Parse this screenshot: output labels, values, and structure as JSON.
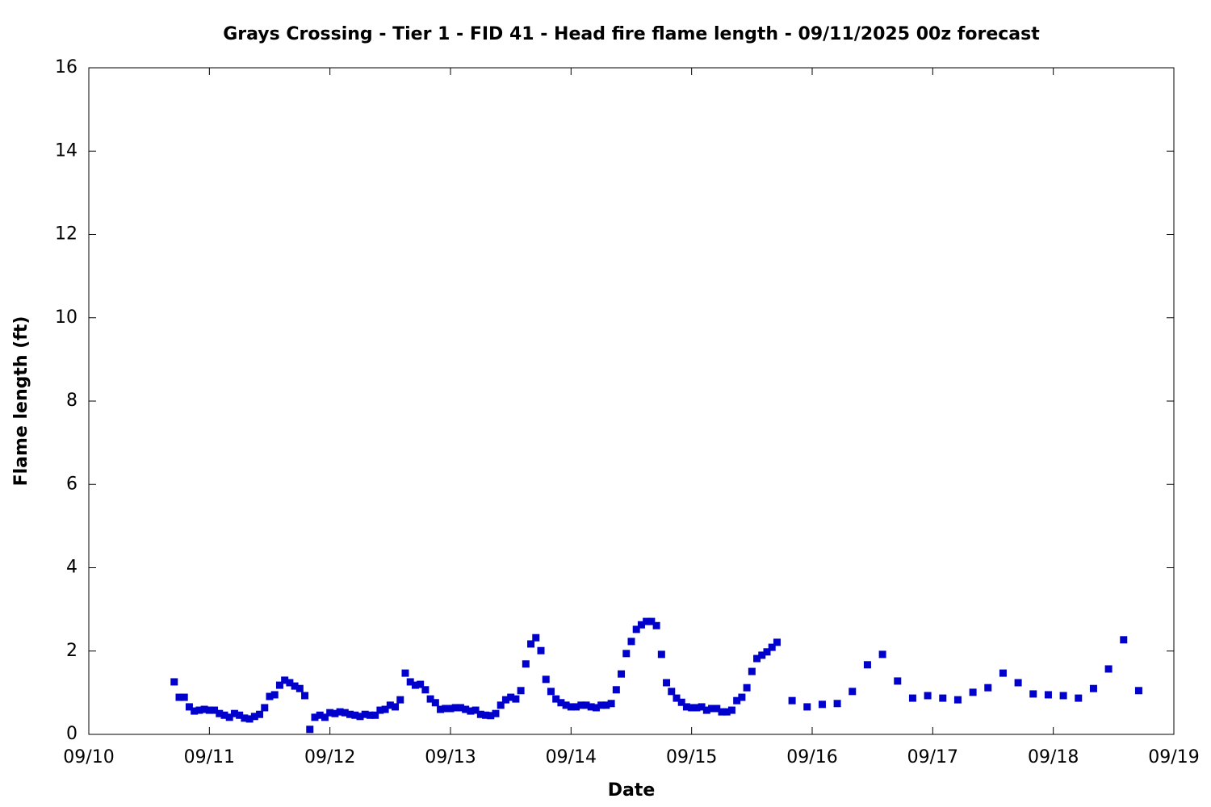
{
  "chart_data": {
    "type": "scatter",
    "title": "Grays Crossing - Tier 1 - FID 41 - Head fire flame length - 09/11/2025 00z forecast",
    "x_label": "Date",
    "y_label": "Flame length (ft)",
    "series": [
      {
        "color": "#0000cc",
        "x": [
          17,
          18,
          19,
          20,
          21,
          22,
          23,
          24,
          25,
          26,
          27,
          28,
          29,
          30,
          31,
          32,
          33,
          34,
          35,
          36,
          37,
          38,
          39,
          40,
          41,
          42,
          43,
          44,
          45,
          46,
          47,
          48,
          49,
          50,
          51,
          52,
          53,
          54,
          55,
          56,
          57,
          58,
          59,
          60,
          61,
          62,
          63,
          64,
          65,
          66,
          67,
          68,
          69,
          70,
          71,
          72,
          73,
          74,
          75,
          76,
          77,
          78,
          79,
          80,
          81,
          82,
          83,
          84,
          85,
          86,
          87,
          88,
          89,
          90,
          91,
          92,
          93,
          94,
          95,
          96,
          97,
          98,
          99,
          100,
          101,
          102,
          103,
          104,
          105,
          106,
          107,
          108,
          109,
          110,
          111,
          112,
          113,
          114,
          115,
          116,
          117,
          118,
          119,
          120,
          121,
          122,
          123,
          124,
          125,
          126,
          127,
          128,
          129,
          130,
          131,
          132,
          133,
          134,
          135,
          136,
          137,
          140,
          143,
          146,
          149,
          152,
          155,
          158,
          161,
          164,
          167,
          170,
          173,
          176,
          179,
          182,
          185,
          188,
          191,
          194,
          197,
          200,
          203,
          206,
          209
        ],
        "values": [
          1.26,
          0.89,
          0.89,
          0.66,
          0.56,
          0.58,
          0.6,
          0.58,
          0.58,
          0.5,
          0.46,
          0.41,
          0.5,
          0.46,
          0.39,
          0.37,
          0.43,
          0.48,
          0.64,
          0.91,
          0.95,
          1.18,
          1.3,
          1.24,
          1.16,
          1.1,
          0.93,
          0.12,
          0.41,
          0.46,
          0.41,
          0.52,
          0.5,
          0.54,
          0.52,
          0.48,
          0.46,
          0.43,
          0.48,
          0.46,
          0.46,
          0.58,
          0.6,
          0.7,
          0.66,
          0.83,
          1.47,
          1.26,
          1.18,
          1.2,
          1.07,
          0.85,
          0.76,
          0.6,
          0.62,
          0.62,
          0.64,
          0.64,
          0.6,
          0.56,
          0.58,
          0.48,
          0.46,
          0.45,
          0.5,
          0.7,
          0.83,
          0.89,
          0.85,
          1.05,
          1.69,
          2.17,
          2.32,
          2.01,
          1.32,
          1.03,
          0.85,
          0.76,
          0.7,
          0.66,
          0.66,
          0.7,
          0.7,
          0.66,
          0.64,
          0.7,
          0.7,
          0.74,
          1.07,
          1.45,
          1.94,
          2.23,
          2.52,
          2.63,
          2.71,
          2.71,
          2.61,
          1.92,
          1.24,
          1.03,
          0.87,
          0.77,
          0.66,
          0.64,
          0.64,
          0.66,
          0.58,
          0.62,
          0.62,
          0.54,
          0.54,
          0.58,
          0.81,
          0.89,
          1.12,
          1.51,
          1.82,
          1.9,
          1.98,
          2.09,
          2.21,
          0.81,
          0.66,
          0.72,
          0.74,
          1.03,
          1.67,
          1.92,
          1.28,
          0.87,
          0.93,
          0.87,
          0.83,
          1.01,
          1.12,
          1.47,
          1.24,
          0.97,
          0.95,
          0.93,
          0.87,
          1.1,
          1.57,
          2.27,
          1.05
        ]
      }
    ],
    "xlim": [
      0,
      216
    ],
    "xticks": [
      {
        "value": 0,
        "label": "09/10"
      },
      {
        "value": 24,
        "label": "09/11"
      },
      {
        "value": 48,
        "label": "09/12"
      },
      {
        "value": 72,
        "label": "09/13"
      },
      {
        "value": 96,
        "label": "09/14"
      },
      {
        "value": 120,
        "label": "09/15"
      },
      {
        "value": 144,
        "label": "09/16"
      },
      {
        "value": 168,
        "label": "09/17"
      },
      {
        "value": 192,
        "label": "09/18"
      },
      {
        "value": 216,
        "label": "09/19"
      }
    ],
    "ylim": [
      0,
      16
    ],
    "yticks": [
      0,
      2,
      4,
      6,
      8,
      10,
      12,
      14,
      16
    ],
    "grid": false
  }
}
